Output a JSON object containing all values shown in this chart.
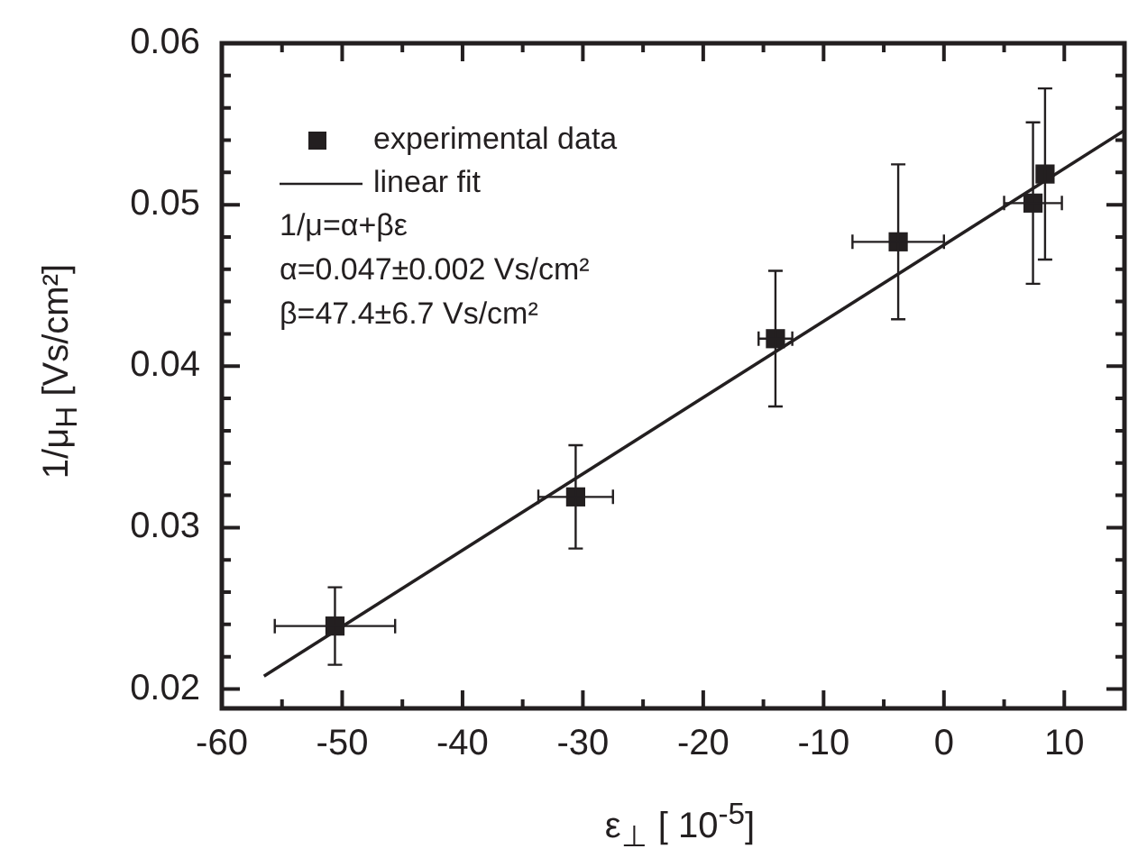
{
  "chart_data": {
    "type": "scatter",
    "xlabel": "ε$_{⊥}$ [ 10$^{-5}$]",
    "ylabel": "1/μ$_{H}$ [Vs/cm²]",
    "xlim": [
      -60,
      15
    ],
    "ylim": [
      0.0188,
      0.06
    ],
    "xticks": [
      -60,
      {
        "value": -55,
        "label": null
      },
      -50,
      {
        "value": -45,
        "label": null
      },
      -40,
      {
        "value": -35,
        "label": null
      },
      -30,
      {
        "value": -25,
        "label": null
      },
      -20,
      {
        "value": -15,
        "label": null
      },
      -10,
      {
        "value": -5,
        "label": null
      },
      0,
      {
        "value": 5,
        "label": null
      },
      10
    ],
    "yticks": [
      0.02,
      {
        "value": 0.022,
        "label": null
      },
      {
        "value": 0.024,
        "label": null
      },
      {
        "value": 0.026,
        "label": null
      },
      {
        "value": 0.028,
        "label": null
      },
      0.03,
      {
        "value": 0.032,
        "label": null
      },
      {
        "value": 0.034,
        "label": null
      },
      {
        "value": 0.036,
        "label": null
      },
      {
        "value": 0.038,
        "label": null
      },
      0.04,
      {
        "value": 0.042,
        "label": null
      },
      {
        "value": 0.044,
        "label": null
      },
      {
        "value": 0.046,
        "label": null
      },
      {
        "value": 0.048,
        "label": null
      },
      0.05,
      {
        "value": 0.052,
        "label": null
      },
      {
        "value": 0.054,
        "label": null
      },
      {
        "value": 0.056,
        "label": null
      },
      {
        "value": 0.058,
        "label": null
      },
      0.06
    ],
    "legend": "top left",
    "annotations": [
      "1/μ=α+βε",
      "α=0.047±0.002 Vs/cm²",
      "β=47.4±6.7 Vs/cm²"
    ],
    "series": [
      {
        "name": "experimental data",
        "marker": "square",
        "color": "#231f20",
        "x": [
          -50.6,
          -30.6,
          -14.0,
          -3.8,
          7.4,
          8.4
        ],
        "values": [
          0.0239,
          0.0319,
          0.0417,
          0.0477,
          0.0501,
          0.0519
        ],
        "errors": [
          0.0024,
          0.0032,
          0.0042,
          0.0048,
          0.005,
          0.0053
        ],
        "xerrors": [
          5.0,
          3.1,
          1.4,
          3.8,
          2.4,
          null
        ]
      },
      {
        "name": "linear fit",
        "type": "line",
        "marker": "none",
        "color": "#231f20",
        "x": [
          -56.5,
          15
        ],
        "values": [
          0.0208,
          0.0546
        ]
      }
    ]
  }
}
